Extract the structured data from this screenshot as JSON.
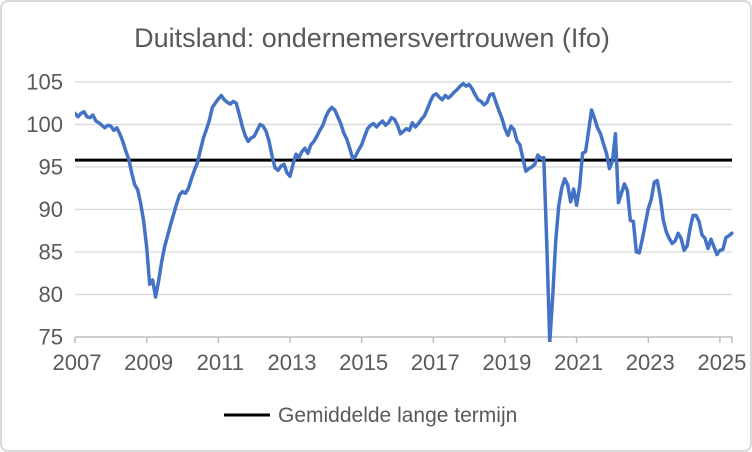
{
  "title": "Duitsland: ondernemersvertrouwen (Ifo)",
  "legend": {
    "average_label": "Gemiddelde lange termijn"
  },
  "colors": {
    "series_line": "#4472C4",
    "average_line": "#000000",
    "gridline": "#d9d9d9",
    "axis_line": "#bfbfbf",
    "text": "#595959",
    "chart_border": "#d9d9d9",
    "background": "#ffffff"
  },
  "chart_data": {
    "type": "line",
    "title": "Duitsland: ondernemersvertrouwen (Ifo)",
    "xlabel": "",
    "ylabel": "",
    "ylim": [
      75,
      105
    ],
    "y_ticks": [
      75,
      80,
      85,
      90,
      95,
      100,
      105
    ],
    "x_ticks": [
      2007,
      2009,
      2011,
      2013,
      2015,
      2017,
      2019,
      2021,
      2023,
      2025
    ],
    "grid": "horizontal",
    "legend_position": "bottom",
    "legend_label": "Gemiddelde lange termijn",
    "long_term_average": 95.8,
    "series_start": "2007-01",
    "series_frequency": "monthly",
    "series_name": "Ifo index",
    "values": [
      101.3,
      100.9,
      101.3,
      101.5,
      100.9,
      100.8,
      101.1,
      100.4,
      100.2,
      99.9,
      99.6,
      99.9,
      99.8,
      99.3,
      99.6,
      98.9,
      98.0,
      96.9,
      95.9,
      94.3,
      92.9,
      92.3,
      90.7,
      88.6,
      85.6,
      81.2,
      81.7,
      79.7,
      81.6,
      83.8,
      85.6,
      86.9,
      88.2,
      89.4,
      90.6,
      91.7,
      92.1,
      91.9,
      92.5,
      93.6,
      94.6,
      95.5,
      97.0,
      98.4,
      99.4,
      100.5,
      102.0,
      102.5,
      103.0,
      103.4,
      102.9,
      102.6,
      102.4,
      102.7,
      102.5,
      101.2,
      99.8,
      98.7,
      98.0,
      98.4,
      98.6,
      99.3,
      100.0,
      99.8,
      99.2,
      98.0,
      96.3,
      94.9,
      94.6,
      95.1,
      95.3,
      94.3,
      93.9,
      95.3,
      96.5,
      96.1,
      96.8,
      97.2,
      96.6,
      97.6,
      98.0,
      98.6,
      99.3,
      99.9,
      100.9,
      101.6,
      102.0,
      101.7,
      100.9,
      100.1,
      99.0,
      98.3,
      97.2,
      96.0,
      96.3,
      97.0,
      97.6,
      98.6,
      99.5,
      99.9,
      100.1,
      99.7,
      100.1,
      100.4,
      99.9,
      100.2,
      100.8,
      100.6,
      99.9,
      98.9,
      99.2,
      99.5,
      99.3,
      100.2,
      99.7,
      100.1,
      100.6,
      101.0,
      101.8,
      102.7,
      103.4,
      103.6,
      103.2,
      102.9,
      103.4,
      103.1,
      103.4,
      103.8,
      104.1,
      104.5,
      104.8,
      104.5,
      104.7,
      104.2,
      103.5,
      102.9,
      102.7,
      102.3,
      102.6,
      103.5,
      103.6,
      102.6,
      101.6,
      100.7,
      99.5,
      98.7,
      99.8,
      99.4,
      98.1,
      97.6,
      96.0,
      94.5,
      94.8,
      95.0,
      95.3,
      96.4,
      96.0,
      96.1,
      86.0,
      74.4,
      79.8,
      86.3,
      90.4,
      92.5,
      93.6,
      92.9,
      90.9,
      92.4,
      90.5,
      92.7,
      96.6,
      96.8,
      99.2,
      101.7,
      100.7,
      99.6,
      98.9,
      97.7,
      96.6,
      94.8,
      95.7,
      98.9,
      90.8,
      91.9,
      93.0,
      92.2,
      88.7,
      88.6,
      85.0,
      84.9,
      86.5,
      88.3,
      90.1,
      91.2,
      93.2,
      93.4,
      91.5,
      88.8,
      87.4,
      86.6,
      86.0,
      86.3,
      87.2,
      86.6,
      85.2,
      85.7,
      87.8,
      89.3,
      89.3,
      88.6,
      87.0,
      86.6,
      85.4,
      86.5,
      85.6,
      84.7,
      85.2,
      85.3,
      86.7,
      86.9,
      87.2
    ]
  }
}
